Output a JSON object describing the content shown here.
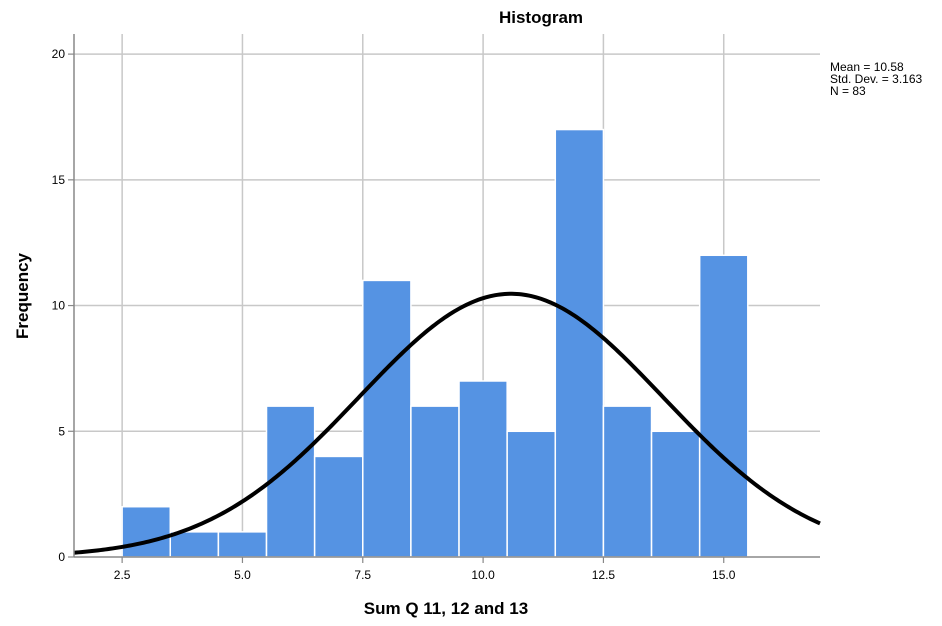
{
  "chart_data": {
    "type": "bar",
    "title": "Histogram",
    "xlabel": "Sum Q 11, 12 and 13",
    "ylabel": "Frequency",
    "xlim": [
      1.5,
      17.0
    ],
    "ylim": [
      0,
      20.8
    ],
    "x_ticks": [
      2.5,
      5.0,
      7.5,
      10.0,
      12.5,
      15.0
    ],
    "x_tick_labels": [
      "2.5",
      "5.0",
      "7.5",
      "10.0",
      "12.5",
      "15.0"
    ],
    "y_ticks": [
      0,
      5,
      10,
      15,
      20
    ],
    "y_tick_labels": [
      "0",
      "5",
      "10",
      "15",
      "20"
    ],
    "bins": [
      {
        "start": 2.5,
        "end": 3.5,
        "value": 2
      },
      {
        "start": 3.5,
        "end": 4.5,
        "value": 1
      },
      {
        "start": 4.5,
        "end": 5.5,
        "value": 1
      },
      {
        "start": 5.5,
        "end": 6.5,
        "value": 6
      },
      {
        "start": 6.5,
        "end": 7.5,
        "value": 4
      },
      {
        "start": 7.5,
        "end": 8.5,
        "value": 11
      },
      {
        "start": 8.5,
        "end": 9.5,
        "value": 6
      },
      {
        "start": 9.5,
        "end": 10.5,
        "value": 7
      },
      {
        "start": 10.5,
        "end": 11.5,
        "value": 5
      },
      {
        "start": 11.5,
        "end": 12.5,
        "value": 17
      },
      {
        "start": 12.5,
        "end": 13.5,
        "value": 6
      },
      {
        "start": 13.5,
        "end": 14.5,
        "value": 5
      },
      {
        "start": 14.5,
        "end": 15.5,
        "value": 12
      }
    ],
    "normal_curve": {
      "mean": 10.58,
      "std_dev": 3.163,
      "n": 83,
      "bin_width": 1
    },
    "stats_labels": [
      "Mean = 10.58",
      "Std. Dev. = 3.163",
      "N = 83"
    ],
    "grid": true,
    "legend_position": "top-right",
    "colors": {
      "bar_fill": "#5593e3",
      "bar_stroke": "#ffffff",
      "curve": "#000000",
      "grid": "#c8c8c8",
      "axis": "#888888"
    }
  }
}
